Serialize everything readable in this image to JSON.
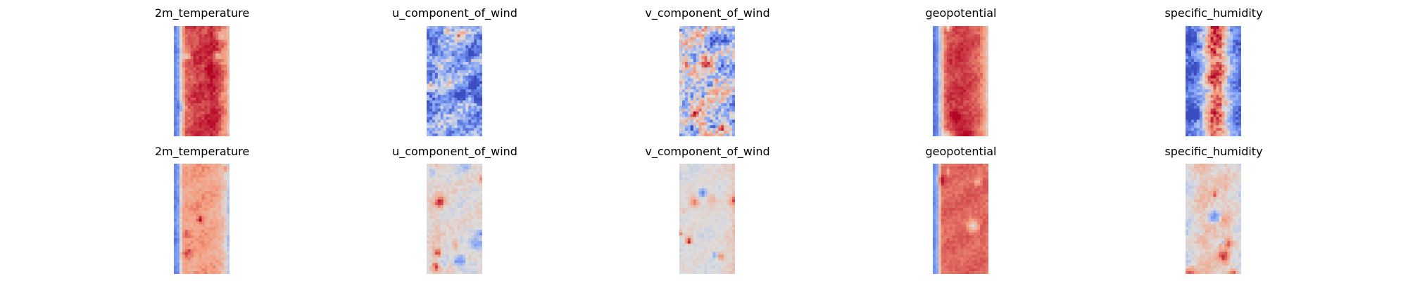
{
  "chart_data": [
    {
      "type": "heatmap",
      "title": "2m_temperature",
      "row": 0,
      "col": 0,
      "colormap": "coolwarm",
      "profile": [
        0.15,
        0.22,
        0.55,
        0.84,
        0.86,
        0.88,
        0.9,
        0.92,
        0.9,
        0.92,
        0.95,
        0.93,
        0.9,
        0.82,
        0.75,
        0.6
      ],
      "spot_count": 5,
      "texture": 0.05,
      "seed": 11
    },
    {
      "type": "heatmap",
      "title": "u_component_of_wind",
      "row": 0,
      "col": 1,
      "colormap": "coolwarm",
      "profile": [
        0.25,
        0.25,
        0.28,
        0.3,
        0.3,
        0.3,
        0.3,
        0.3,
        0.28,
        0.28,
        0.26,
        0.25
      ],
      "spot_count": 26,
      "texture": 0.16,
      "seed": 23
    },
    {
      "type": "heatmap",
      "title": "v_component_of_wind",
      "row": 0,
      "col": 2,
      "colormap": "coolwarm",
      "profile": [
        0.42,
        0.45,
        0.5,
        0.5,
        0.5,
        0.5,
        0.5,
        0.5,
        0.48,
        0.45,
        0.42
      ],
      "spot_count": 30,
      "texture": 0.2,
      "seed": 37
    },
    {
      "type": "heatmap",
      "title": "geopotential",
      "row": 0,
      "col": 3,
      "colormap": "coolwarm",
      "profile": [
        0.1,
        0.2,
        0.55,
        0.85,
        0.9,
        0.9,
        0.92,
        0.92,
        0.9,
        0.88,
        0.85,
        0.82,
        0.72,
        0.55
      ],
      "spot_count": 4,
      "texture": 0.04,
      "seed": 41
    },
    {
      "type": "heatmap",
      "title": "specific_humidity",
      "row": 0,
      "col": 4,
      "colormap": "coolwarm",
      "profile": [
        0.08,
        0.12,
        0.2,
        0.3,
        0.55,
        0.8,
        0.85,
        0.8,
        0.55,
        0.3,
        0.18,
        0.1
      ],
      "spot_count": 14,
      "texture": 0.12,
      "seed": 53
    },
    {
      "type": "heatmap",
      "title": "2m_temperature",
      "row": 1,
      "col": 0,
      "colormap": "coolwarm",
      "profile": [
        0.15,
        0.25,
        0.7,
        0.72,
        0.72,
        0.73,
        0.74,
        0.74,
        0.72,
        0.72,
        0.7,
        0.66,
        0.55,
        0.35
      ],
      "spot_count": 4,
      "texture": 0.05,
      "seed": 61
    },
    {
      "type": "heatmap",
      "title": "u_component_of_wind",
      "row": 1,
      "col": 1,
      "colormap": "coolwarm",
      "profile": [
        0.52,
        0.56,
        0.58,
        0.54,
        0.52,
        0.52,
        0.52,
        0.5,
        0.52,
        0.5,
        0.52,
        0.54
      ],
      "spot_count": 12,
      "texture": 0.06,
      "seed": 73
    },
    {
      "type": "heatmap",
      "title": "v_component_of_wind",
      "row": 1,
      "col": 2,
      "colormap": "coolwarm",
      "profile": [
        0.5,
        0.5,
        0.5,
        0.5,
        0.5,
        0.5,
        0.5,
        0.5,
        0.5,
        0.52,
        0.55,
        0.6
      ],
      "spot_count": 10,
      "texture": 0.04,
      "seed": 89
    },
    {
      "type": "heatmap",
      "title": "geopotential",
      "row": 1,
      "col": 3,
      "colormap": "coolwarm",
      "profile": [
        0.15,
        0.3,
        0.82,
        0.84,
        0.84,
        0.84,
        0.84,
        0.84,
        0.84,
        0.84,
        0.84,
        0.84,
        0.84,
        0.82
      ],
      "spot_count": 4,
      "texture": 0.03,
      "seed": 97
    },
    {
      "type": "heatmap",
      "title": "specific_humidity",
      "row": 1,
      "col": 4,
      "colormap": "coolwarm",
      "profile": [
        0.46,
        0.48,
        0.55,
        0.6,
        0.62,
        0.58,
        0.58,
        0.56,
        0.6,
        0.55,
        0.5,
        0.46
      ],
      "spot_count": 10,
      "texture": 0.06,
      "seed": 103
    }
  ]
}
